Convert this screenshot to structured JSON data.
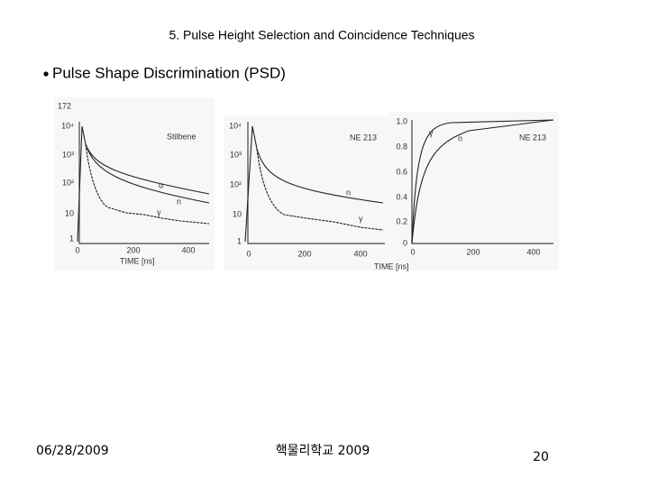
{
  "header": {
    "title": "5. Pulse Height Selection and Coincidence Techniques"
  },
  "bullet": "Pulse Shape Discrimination (PSD)",
  "figure": {
    "panels": [
      {
        "corner": "172",
        "y_labels": [
          "10⁴",
          "10³",
          "10²",
          "10",
          "1"
        ],
        "label": "Stilbene",
        "curve_labels": [
          "α",
          "n",
          "γ"
        ],
        "x_labels": [
          "0",
          "200",
          "400"
        ],
        "x_title": "TIME  [ns]"
      },
      {
        "y_labels": [
          "10⁴",
          "10³",
          "10²",
          "10",
          "1"
        ],
        "label": "NE 213",
        "curve_labels": [
          "n",
          "γ"
        ],
        "x_labels": [
          "0",
          "200",
          "400"
        ],
        "x_title": "TIME  [ns]"
      },
      {
        "y_labels": [
          "1.0",
          "0.8",
          "0.6",
          "0.4",
          "0.2",
          "0"
        ],
        "label": "NE 213",
        "curve_labels": [
          "γ",
          "n"
        ],
        "x_labels": [
          "0",
          "200",
          "400"
        ]
      }
    ]
  },
  "footer": {
    "date": "06/28/2009",
    "org": "핵물리학교 2009",
    "page": "20"
  }
}
